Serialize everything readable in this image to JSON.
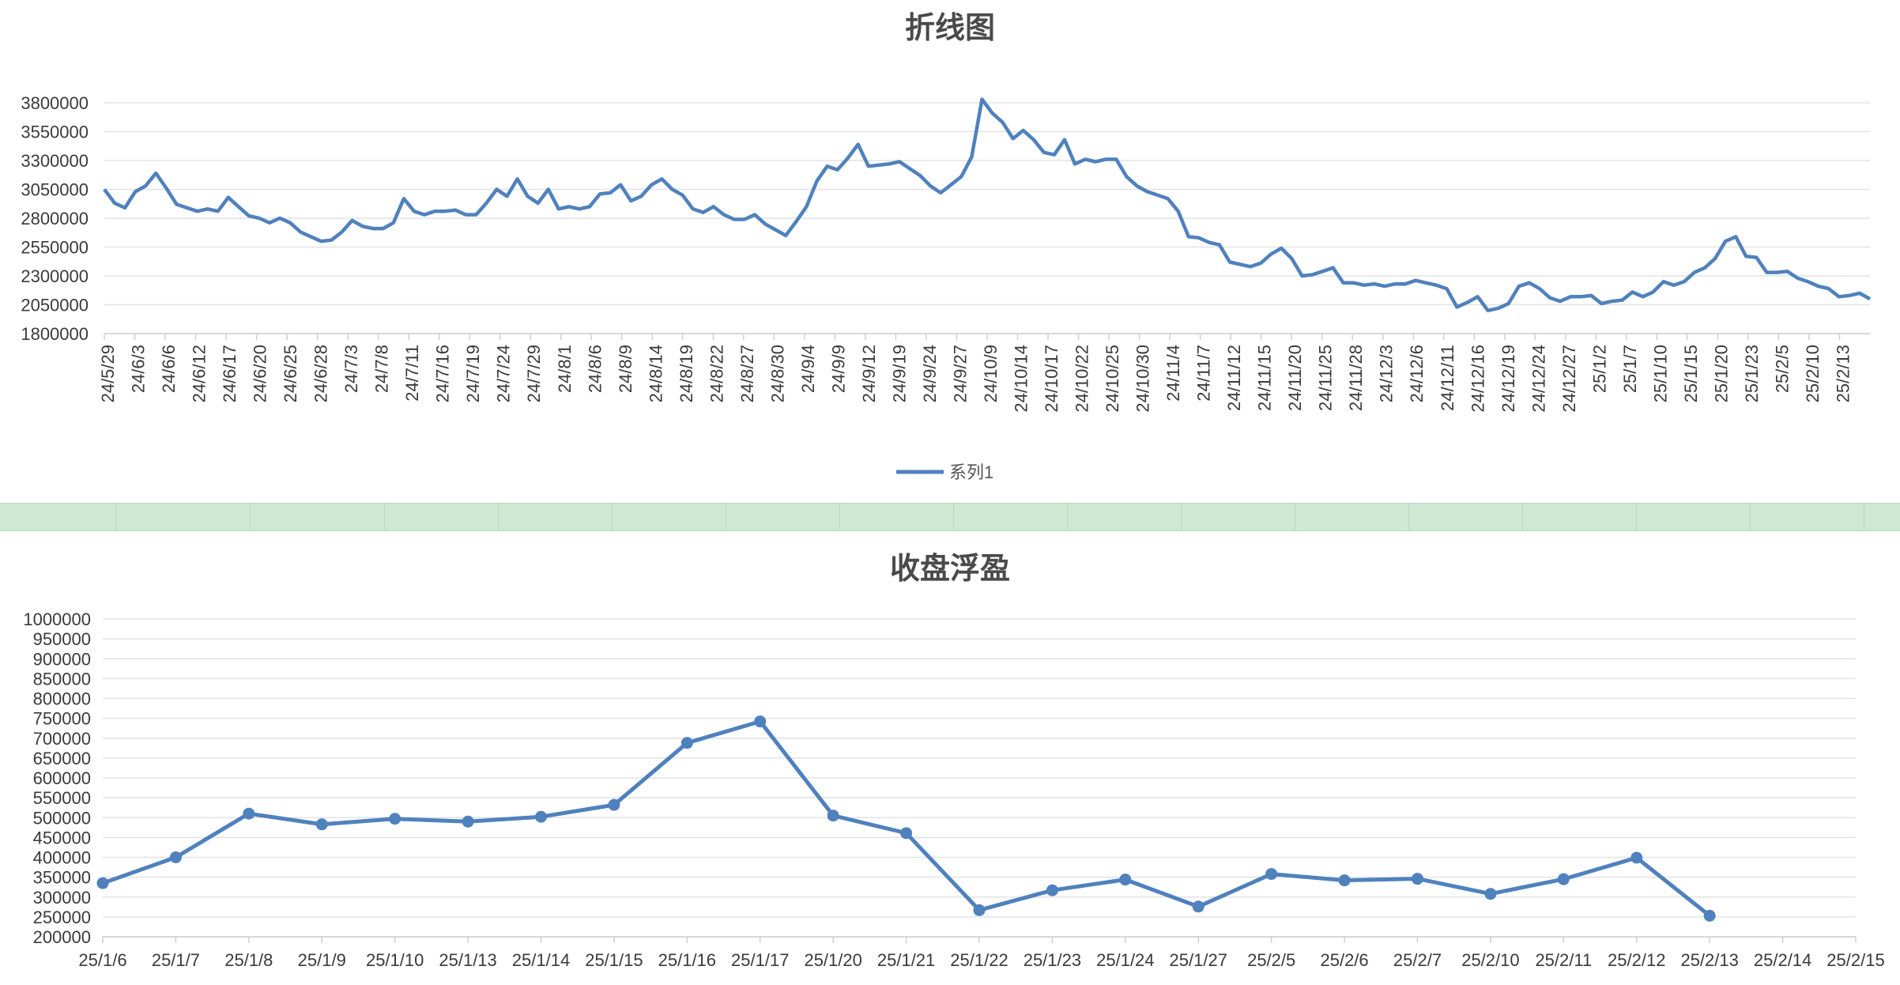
{
  "chart_data": [
    {
      "type": "line",
      "title": "折线图",
      "legend": {
        "position": "bottom",
        "entries": [
          "系列1"
        ]
      },
      "grid": true,
      "ylim": [
        1800000,
        3800000
      ],
      "yticks": [
        1800000,
        2050000,
        2300000,
        2550000,
        2800000,
        3050000,
        3300000,
        3550000,
        3800000
      ],
      "x_tick_labels": [
        "24/5/29",
        "24/6/3",
        "24/6/6",
        "24/6/12",
        "24/6/17",
        "24/6/20",
        "24/6/25",
        "24/6/28",
        "24/7/3",
        "24/7/8",
        "24/7/11",
        "24/7/16",
        "24/7/19",
        "24/7/24",
        "24/7/29",
        "24/8/1",
        "24/8/6",
        "24/8/9",
        "24/8/14",
        "24/8/19",
        "24/8/22",
        "24/8/27",
        "24/8/30",
        "24/9/4",
        "24/9/9",
        "24/9/12",
        "24/9/19",
        "24/9/24",
        "24/9/27",
        "24/10/9",
        "24/10/14",
        "24/10/17",
        "24/10/22",
        "24/10/25",
        "24/10/30",
        "24/11/4",
        "24/11/7",
        "24/11/12",
        "24/11/15",
        "24/11/20",
        "24/11/25",
        "24/11/28",
        "24/12/3",
        "24/12/6",
        "24/12/11",
        "24/12/16",
        "24/12/19",
        "24/12/24",
        "24/12/27",
        "25/1/2",
        "25/1/7",
        "25/1/10",
        "25/1/15",
        "25/1/20",
        "25/1/23",
        "25/2/5",
        "25/2/10",
        "25/2/13"
      ],
      "series": [
        {
          "name": "系列1",
          "color": "#4f81bd",
          "values": [
            3050000,
            2930000,
            2890000,
            3030000,
            3080000,
            3190000,
            3060000,
            2920000,
            2890000,
            2860000,
            2880000,
            2860000,
            2980000,
            2900000,
            2820000,
            2800000,
            2760000,
            2800000,
            2760000,
            2680000,
            2640000,
            2600000,
            2610000,
            2680000,
            2780000,
            2730000,
            2710000,
            2710000,
            2760000,
            2970000,
            2860000,
            2830000,
            2860000,
            2860000,
            2870000,
            2830000,
            2830000,
            2930000,
            3050000,
            2990000,
            3140000,
            2990000,
            2930000,
            3050000,
            2880000,
            2900000,
            2880000,
            2900000,
            3010000,
            3020000,
            3090000,
            2950000,
            2990000,
            3090000,
            3140000,
            3050000,
            3000000,
            2880000,
            2850000,
            2900000,
            2830000,
            2790000,
            2790000,
            2830000,
            2750000,
            2700000,
            2650000,
            2770000,
            2900000,
            3120000,
            3250000,
            3220000,
            3320000,
            3440000,
            3250000,
            3260000,
            3270000,
            3290000,
            3230000,
            3170000,
            3080000,
            3020000,
            3090000,
            3160000,
            3330000,
            3830000,
            3710000,
            3630000,
            3490000,
            3560000,
            3480000,
            3370000,
            3350000,
            3480000,
            3270000,
            3310000,
            3290000,
            3310000,
            3310000,
            3160000,
            3080000,
            3030000,
            3000000,
            2970000,
            2860000,
            2640000,
            2630000,
            2590000,
            2570000,
            2420000,
            2400000,
            2380000,
            2410000,
            2490000,
            2540000,
            2450000,
            2300000,
            2310000,
            2340000,
            2370000,
            2240000,
            2240000,
            2220000,
            2230000,
            2210000,
            2230000,
            2230000,
            2260000,
            2240000,
            2220000,
            2190000,
            2030000,
            2070000,
            2120000,
            2000000,
            2020000,
            2060000,
            2210000,
            2240000,
            2190000,
            2110000,
            2080000,
            2120000,
            2120000,
            2130000,
            2060000,
            2080000,
            2090000,
            2160000,
            2120000,
            2160000,
            2250000,
            2220000,
            2250000,
            2330000,
            2370000,
            2450000,
            2600000,
            2640000,
            2470000,
            2460000,
            2330000,
            2330000,
            2340000,
            2280000,
            2250000,
            2210000,
            2190000,
            2120000,
            2130000,
            2150000,
            2100000
          ]
        }
      ]
    },
    {
      "type": "line",
      "title": "收盘浮盈",
      "grid": true,
      "ylim": [
        200000,
        1000000
      ],
      "yticks": [
        200000,
        250000,
        300000,
        350000,
        400000,
        450000,
        500000,
        550000,
        600000,
        650000,
        700000,
        750000,
        800000,
        850000,
        900000,
        950000,
        1000000
      ],
      "categories": [
        "25/1/6",
        "25/1/7",
        "25/1/8",
        "25/1/9",
        "25/1/10",
        "25/1/13",
        "25/1/14",
        "25/1/15",
        "25/1/16",
        "25/1/17",
        "25/1/20",
        "25/1/21",
        "25/1/22",
        "25/1/23",
        "25/1/24",
        "25/1/27",
        "25/2/5",
        "25/2/6",
        "25/2/7",
        "25/2/10",
        "25/2/11",
        "25/2/12",
        "25/2/13",
        "25/2/14",
        "25/2/15"
      ],
      "series": [
        {
          "color": "#4f81bd",
          "markers": true,
          "values": [
            335000,
            400000,
            510000,
            483000,
            497000,
            490000,
            502000,
            532000,
            688000,
            742000,
            505000,
            461000,
            267000,
            317000,
            344000,
            276000,
            358000,
            342000,
            346000,
            308000,
            345000,
            399000,
            253000,
            null,
            null
          ]
        }
      ]
    }
  ]
}
